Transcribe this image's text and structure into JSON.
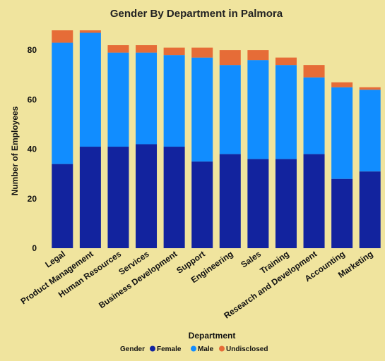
{
  "chart_data": {
    "type": "bar",
    "stacked": true,
    "title": "Gender By Department in Palmora",
    "xlabel": "Department",
    "ylabel": "Number of Employees",
    "ylim": [
      0,
      88
    ],
    "yticks": [
      0,
      20,
      40,
      60,
      80
    ],
    "grid": false,
    "legend": {
      "title": "Gender",
      "placement": "bottom-center"
    },
    "categories": [
      "Legal",
      "Product Management",
      "Human Resources",
      "Services",
      "Business Development",
      "Support",
      "Engineering",
      "Sales",
      "Training",
      "Research and Development",
      "Accounting",
      "Marketing"
    ],
    "series": [
      {
        "name": "Female",
        "color": "#12239e",
        "values": [
          34,
          41,
          41,
          42,
          41,
          35,
          38,
          36,
          36,
          38,
          28,
          31
        ]
      },
      {
        "name": "Male",
        "color": "#118dff",
        "values": [
          49,
          46,
          38,
          37,
          37,
          42,
          36,
          40,
          38,
          31,
          37,
          33
        ]
      },
      {
        "name": "Undisclosed",
        "color": "#e66c37",
        "values": [
          5,
          1,
          3,
          3,
          3,
          4,
          6,
          4,
          3,
          5,
          2,
          1
        ]
      }
    ]
  }
}
